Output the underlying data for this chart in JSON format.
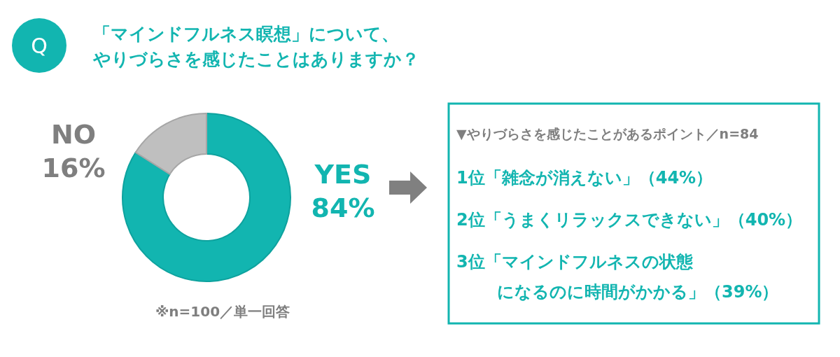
{
  "chart_data": [
    {
      "type": "donut",
      "title": "「マインドフルネス瞑想」について、やりづらさを感じたことはありますか？",
      "categories": [
        "YES",
        "NO"
      ],
      "values": [
        84,
        16
      ],
      "colors": [
        "#12b5b0",
        "#bfbfbf"
      ],
      "value_labels": [
        "84%",
        "16%"
      ],
      "annotations": [
        "Q",
        "※n=100／単一回答"
      ]
    },
    {
      "type": "other",
      "title": "▼やりづらさを感じたことがあるポイント／n=84",
      "annotations": [
        "1位「雑念が消えない」（44%）",
        "2位「うまくリラックスできない」（40%）",
        "3位「マインドフルネスの状態",
        "になるのに時間がかかる」（39%）"
      ]
    }
  ]
}
